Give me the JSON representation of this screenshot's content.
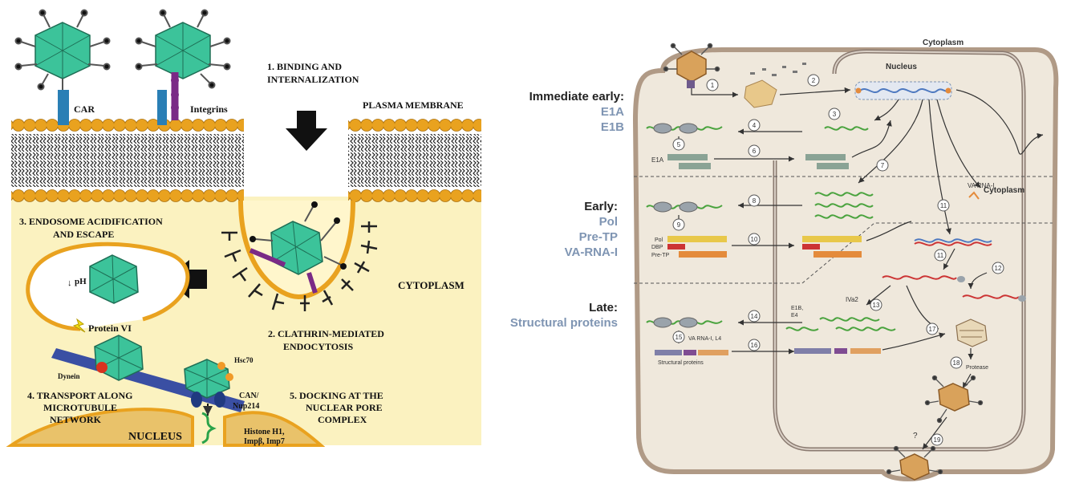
{
  "left_panel": {
    "step1": [
      "1. BINDING AND",
      "INTERNALIZATION"
    ],
    "plasma_membrane": "PLASMA MEMBRANE",
    "car": "CAR",
    "integrins": "Integrins",
    "step3": [
      "3. ENDOSOME ACIDIFICATION",
      "AND ESCAPE"
    ],
    "ph": "pH",
    "protein_vi": "Protein VI",
    "cytoplasm": "CYTOPLASM",
    "step2": [
      "2. CLATHRIN-MEDIATED",
      "ENDOCYTOSIS"
    ],
    "dynein": "Dynein",
    "hsc70": "Hsc70",
    "can_nup": [
      "CAN/",
      "Nup214"
    ],
    "step4": [
      "4. TRANSPORT ALONG",
      "MICROTUBULE",
      "NETWORK"
    ],
    "step5": [
      "5. DOCKING AT THE",
      "NUCLEAR PORE",
      "COMPLEX"
    ],
    "nucleus": "NUCLEUS",
    "histone": [
      "Histone H1,",
      "Impβ, Imp7"
    ]
  },
  "phase_labels": {
    "immediate_early": {
      "title": "Immediate early:",
      "genes": [
        "E1A",
        "E1B"
      ]
    },
    "early": {
      "title": "Early:",
      "genes": [
        "Pol",
        "Pre-TP",
        "VA-RNA-I"
      ]
    },
    "late": {
      "title": "Late:",
      "genes": [
        "Structural proteins"
      ]
    }
  },
  "right_panel": {
    "cytoplasm_top": "Cytoplasm",
    "nucleus": "Nucleus",
    "cytoplasm_mid": "Cytoplasm",
    "e1a": "E1A",
    "pol": "Pol",
    "dbp": "DBP",
    "pre_tp": "Pre-TP",
    "va_rna": "VA RNA-I",
    "iva2": "IVa2",
    "e1b_e4": [
      "E1B,",
      "E4"
    ],
    "va_l4": "VA RNA-I, L4",
    "structural_proteins": "Structural proteins",
    "protease": "Protease",
    "question": "?",
    "steps": [
      "1",
      "2",
      "3",
      "4",
      "5",
      "6",
      "7",
      "8",
      "9",
      "10",
      "11",
      "11",
      "12",
      "13",
      "14",
      "15",
      "16",
      "17",
      "18",
      "19"
    ]
  },
  "colors": {
    "membrane_head": "#e9a21f",
    "cytoplasm_bg": "#fbf2c0",
    "virus": "#3cc39a",
    "car": "#2a7fb5",
    "integrin": "#7a2a86",
    "cell_fill": "#efe8dc",
    "protein_green": "#8aa395",
    "protein_yellow": "#e8c84a",
    "protein_orange": "#e48b3c",
    "protein_red": "#cc3333",
    "protein_purple": "#7f4c92",
    "gene_blue": "#7f95b3"
  }
}
